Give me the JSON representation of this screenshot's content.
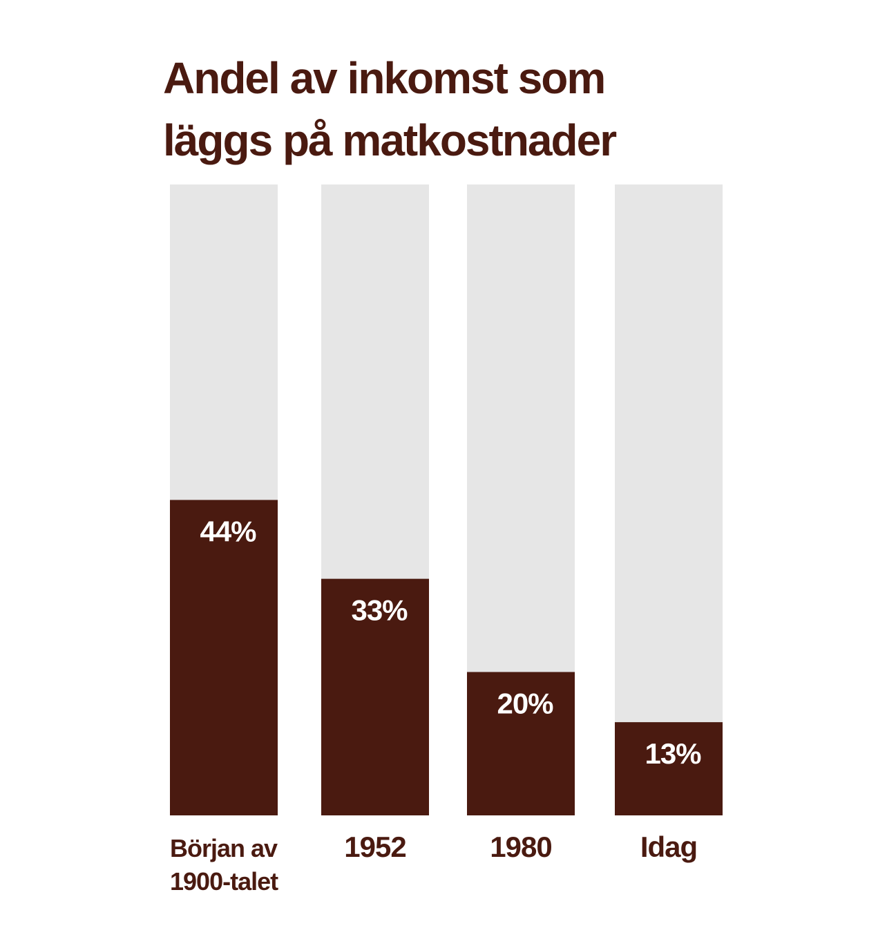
{
  "title_lines": [
    "Andel av inkomst som",
    "läggs på matkostnader"
  ],
  "colors": {
    "background": "#ffffff",
    "bar_track": "#e6e6e6",
    "bar_fill": "#4a1a10",
    "value_text": "#ffffff",
    "text": "#4a1a10"
  },
  "chart_data": {
    "type": "bar",
    "title": "Andel av inkomst som läggs på matkostnader",
    "categories": [
      [
        "Början av",
        "1900-talet"
      ],
      [
        "1952"
      ],
      [
        "1980"
      ],
      [
        "Idag"
      ]
    ],
    "values": [
      44,
      33,
      20,
      13
    ],
    "value_labels": [
      "44%",
      "33%",
      "20%",
      "13%"
    ],
    "unit": "%",
    "ylim": [
      0,
      88
    ],
    "grid": false,
    "xlabel": "",
    "ylabel": ""
  }
}
